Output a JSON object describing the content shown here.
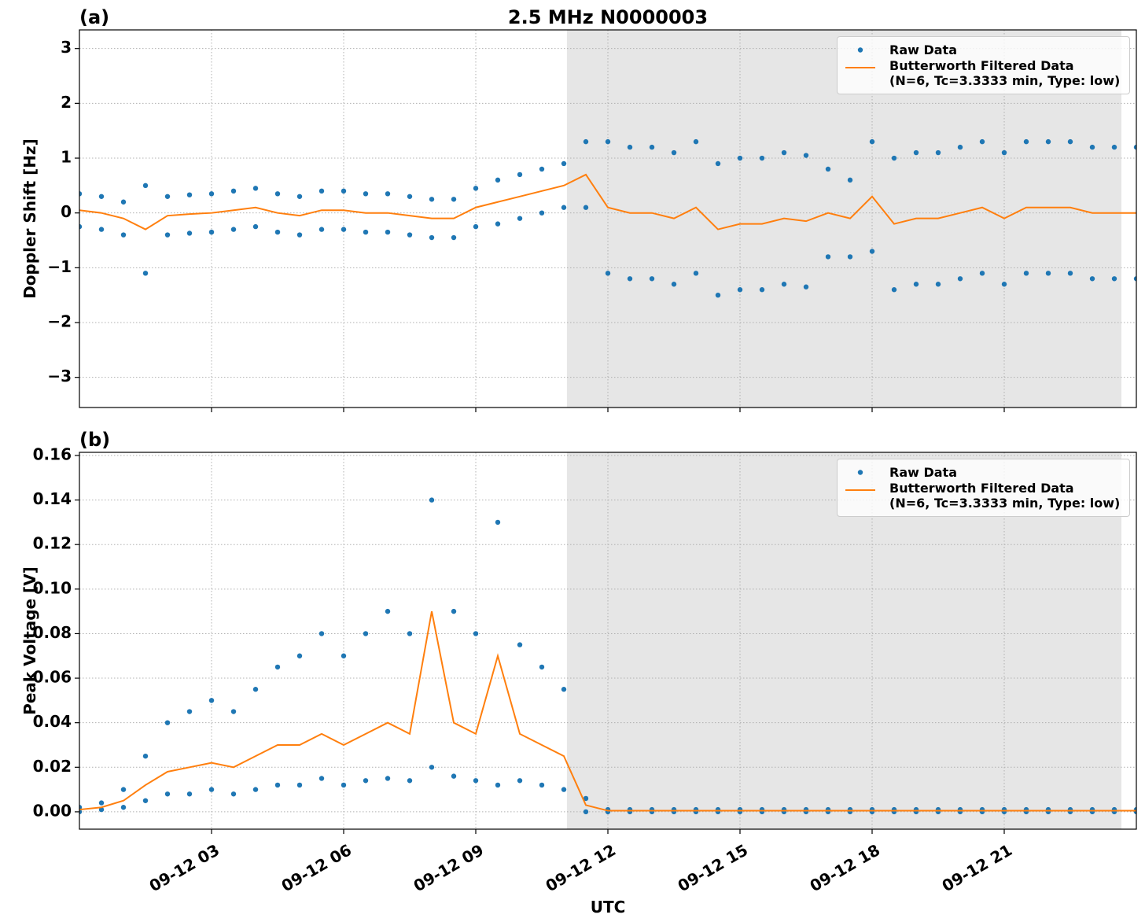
{
  "chart_data": [
    {
      "type": "timeseries",
      "title": "2.5 MHz N0000003",
      "panel_label": "(a)",
      "y_label": "Doppler Shift [Hz]",
      "xlim": [
        0,
        24
      ],
      "xticks": [
        3,
        6,
        9,
        12,
        15,
        18,
        21
      ],
      "ylim": [
        -3.55,
        3.34
      ],
      "yticks": [
        {
          "value": -3,
          "label": "−3"
        },
        {
          "value": -2,
          "label": "−2"
        },
        {
          "value": -1,
          "label": "−1"
        },
        0,
        1,
        2,
        3
      ],
      "grid": true,
      "legend": "upper right",
      "shaded": [
        [
          11.07,
          23.66
        ]
      ],
      "series": [
        {
          "name": "Raw Data",
          "kind": "scatter",
          "color": "#1f77b4",
          "x": [
            0,
            0,
            0.5,
            0.5,
            1,
            1,
            1.5,
            1.5,
            2,
            2,
            2.5,
            2.5,
            3,
            3,
            3.5,
            3.5,
            4,
            4,
            4.5,
            4.5,
            5,
            5,
            5.5,
            5.5,
            6,
            6,
            6.5,
            6.5,
            7,
            7,
            7.5,
            7.5,
            8,
            8,
            8.5,
            8.5,
            9,
            9,
            9.5,
            9.5,
            10,
            10,
            10.5,
            10.5,
            11,
            11,
            11.5,
            11.5,
            12,
            12,
            12.5,
            12.5,
            13,
            13,
            13.5,
            13.5,
            14,
            14,
            14.5,
            14.5,
            15,
            15,
            15.5,
            15.5,
            16,
            16,
            16.5,
            16.5,
            17,
            17,
            17.5,
            17.5,
            18,
            18,
            18.5,
            18.5,
            19,
            19,
            19.5,
            19.5,
            20,
            20,
            20.5,
            20.5,
            21,
            21,
            21.5,
            21.5,
            22,
            22,
            22.5,
            22.5,
            23,
            23,
            23.5,
            23.5,
            24,
            24
          ],
          "values": [
            0.35,
            -0.25,
            0.3,
            -0.3,
            0.2,
            -0.4,
            0.5,
            -1.1,
            0.3,
            -0.4,
            0.33,
            -0.37,
            0.35,
            -0.35,
            0.4,
            -0.3,
            0.45,
            -0.25,
            0.35,
            -0.35,
            0.3,
            -0.4,
            0.4,
            -0.3,
            0.4,
            -0.3,
            0.35,
            -0.35,
            0.35,
            -0.35,
            0.3,
            -0.4,
            0.25,
            -0.45,
            0.25,
            -0.45,
            0.45,
            -0.25,
            0.6,
            -0.2,
            0.7,
            -0.1,
            0.8,
            0,
            0.9,
            0.1,
            1.3,
            0.1,
            1.3,
            -1.1,
            1.2,
            -1.2,
            1.2,
            -1.2,
            1.1,
            -1.3,
            1.3,
            -1.1,
            0.9,
            -1.5,
            1,
            -1.4,
            1,
            -1.4,
            1.1,
            -1.3,
            1.05,
            -1.35,
            0.8,
            -0.8,
            0.6,
            -0.8,
            1.3,
            -0.7,
            1,
            -1.4,
            1.1,
            -1.3,
            1.1,
            -1.3,
            1.2,
            -1.2,
            1.3,
            -1.1,
            1.1,
            -1.3,
            1.3,
            -1.1,
            1.3,
            -1.1,
            1.3,
            -1.1,
            1.2,
            -1.2,
            1.2,
            -1.2,
            1.2,
            -1.2
          ]
        },
        {
          "name": "Butterworth Filtered Data\n(N=6, Tc=3.3333 min, Type: low)",
          "kind": "line",
          "color": "#ff7f0e",
          "x": [
            0,
            0.5,
            1,
            1.5,
            2,
            2.5,
            3,
            3.5,
            4,
            4.5,
            5,
            5.5,
            6,
            6.5,
            7,
            7.5,
            8,
            8.5,
            9,
            9.5,
            10,
            10.5,
            11,
            11.5,
            12,
            12.5,
            13,
            13.5,
            14,
            14.5,
            15,
            15.5,
            16,
            16.5,
            17,
            17.5,
            18,
            18.5,
            19,
            19.5,
            20,
            20.5,
            21,
            21.5,
            22,
            22.5,
            23,
            23.5,
            24
          ],
          "values": [
            0.05,
            0,
            -0.1,
            -0.3,
            -0.05,
            -0.02,
            0,
            0.05,
            0.1,
            0,
            -0.05,
            0.05,
            0.05,
            0,
            0,
            -0.05,
            -0.1,
            -0.1,
            0.1,
            0.2,
            0.3,
            0.4,
            0.5,
            0.7,
            0.1,
            0,
            0,
            -0.1,
            0.1,
            -0.3,
            -0.2,
            -0.2,
            -0.1,
            -0.15,
            0,
            -0.1,
            0.3,
            -0.2,
            -0.1,
            -0.1,
            0,
            0.1,
            -0.1,
            0.1,
            0.1,
            0.1,
            0,
            0,
            0
          ]
        }
      ]
    },
    {
      "type": "timeseries",
      "panel_label": "(b)",
      "y_label": "Peak Voltage [V]",
      "x_label": "UTC",
      "xlim": [
        0,
        24
      ],
      "xticks": [
        {
          "value": 3,
          "label": "09-12 03"
        },
        {
          "value": 6,
          "label": "09-12 06"
        },
        {
          "value": 9,
          "label": "09-12 09"
        },
        {
          "value": 12,
          "label": "09-12 12"
        },
        {
          "value": 15,
          "label": "09-12 15"
        },
        {
          "value": 18,
          "label": "09-12 18"
        },
        {
          "value": 21,
          "label": "09-12 21"
        }
      ],
      "ylim": [
        -0.0078,
        0.1614
      ],
      "yticks": [
        {
          "value": 0,
          "label": "0.00"
        },
        {
          "value": 0.02,
          "label": "0.02"
        },
        {
          "value": 0.04,
          "label": "0.04"
        },
        {
          "value": 0.06,
          "label": "0.06"
        },
        {
          "value": 0.08,
          "label": "0.08"
        },
        {
          "value": 0.1,
          "label": "0.10"
        },
        {
          "value": 0.12,
          "label": "0.12"
        },
        {
          "value": 0.14,
          "label": "0.14"
        },
        {
          "value": 0.16,
          "label": "0.16"
        }
      ],
      "grid": true,
      "legend": "upper right",
      "shaded": [
        [
          11.07,
          23.66
        ]
      ],
      "series": [
        {
          "name": "Raw Data",
          "kind": "scatter",
          "color": "#1f77b4",
          "x": [
            0,
            0,
            0.5,
            0.5,
            1,
            1,
            1.5,
            1.5,
            2,
            2,
            2.5,
            2.5,
            3,
            3,
            3.5,
            3.5,
            4,
            4,
            4.5,
            4.5,
            5,
            5,
            5.5,
            5.5,
            6,
            6,
            6.5,
            6.5,
            7,
            7,
            7.5,
            7.5,
            8,
            8,
            8.5,
            8.5,
            9,
            9,
            9.5,
            9.5,
            10,
            10,
            10.5,
            10.5,
            11,
            11,
            11.5,
            11.5,
            12,
            12,
            12.5,
            12.5,
            13,
            13,
            13.5,
            13.5,
            14,
            14,
            14.5,
            14.5,
            15,
            15,
            15.5,
            15.5,
            16,
            16,
            16.5,
            16.5,
            17,
            17,
            17.5,
            17.5,
            18,
            18,
            18.5,
            18.5,
            19,
            19,
            19.5,
            19.5,
            20,
            20,
            20.5,
            20.5,
            21,
            21,
            21.5,
            21.5,
            22,
            22,
            22.5,
            22.5,
            23,
            23,
            23.5,
            23.5,
            24,
            24
          ],
          "values": [
            0.002,
            0,
            0.004,
            0.001,
            0.01,
            0.002,
            0.025,
            0.005,
            0.04,
            0.008,
            0.045,
            0.008,
            0.05,
            0.01,
            0.045,
            0.008,
            0.055,
            0.01,
            0.065,
            0.012,
            0.07,
            0.012,
            0.08,
            0.015,
            0.07,
            0.012,
            0.08,
            0.014,
            0.09,
            0.015,
            0.08,
            0.014,
            0.14,
            0.02,
            0.09,
            0.016,
            0.08,
            0.014,
            0.13,
            0.012,
            0.075,
            0.014,
            0.065,
            0.012,
            0.055,
            0.01,
            0.006,
            0,
            0.001,
            0,
            0.001,
            0,
            0.001,
            0,
            0.001,
            0,
            0.001,
            0,
            0.001,
            0,
            0.001,
            0,
            0.001,
            0,
            0.001,
            0,
            0.001,
            0,
            0.001,
            0,
            0.001,
            0,
            0.001,
            0,
            0.001,
            0,
            0.001,
            0,
            0.001,
            0,
            0.001,
            0,
            0.001,
            0,
            0.001,
            0,
            0.001,
            0,
            0.001,
            0,
            0.001,
            0,
            0.001,
            0,
            0.001,
            0,
            0.001,
            0
          ]
        },
        {
          "name": "Butterworth Filtered Data\n(N=6, Tc=3.3333 min, Type: low)",
          "kind": "line",
          "color": "#ff7f0e",
          "x": [
            0,
            0.5,
            1,
            1.5,
            2,
            2.5,
            3,
            3.5,
            4,
            4.5,
            5,
            5.5,
            6,
            6.5,
            7,
            7.5,
            8,
            8.5,
            9,
            9.5,
            10,
            10.5,
            11,
            11.5,
            12,
            12.5,
            13,
            13.5,
            14,
            14.5,
            15,
            15.5,
            16,
            16.5,
            17,
            17.5,
            18,
            18.5,
            19,
            19.5,
            20,
            20.5,
            21,
            21.5,
            22,
            22.5,
            23,
            23.5,
            24
          ],
          "values": [
            0.001,
            0.002,
            0.005,
            0.012,
            0.018,
            0.02,
            0.022,
            0.02,
            0.025,
            0.03,
            0.03,
            0.035,
            0.03,
            0.035,
            0.04,
            0.035,
            0.09,
            0.04,
            0.035,
            0.07,
            0.035,
            0.03,
            0.025,
            0.003,
            0.0005,
            0.0005,
            0.0005,
            0.0005,
            0.0005,
            0.0005,
            0.0005,
            0.0005,
            0.0005,
            0.0005,
            0.0005,
            0.0005,
            0.0005,
            0.0005,
            0.0005,
            0.0005,
            0.0005,
            0.0005,
            0.0005,
            0.0005,
            0.0005,
            0.0005,
            0.0005,
            0.0005,
            0.0005
          ]
        }
      ]
    }
  ]
}
